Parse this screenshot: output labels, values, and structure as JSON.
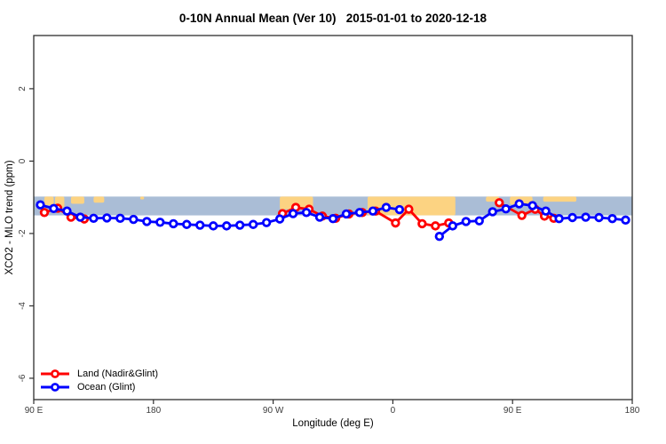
{
  "title": "0-10N Annual Mean (Ver 10)   2015-01-01 to 2020-12-18",
  "axes": {
    "x_label": "Longitude (deg E)",
    "y_label": "XCO2 - MLO trend (ppm)"
  },
  "legend": {
    "items": [
      {
        "label": "Land (Nadir&Glint)",
        "color": "#ff0000",
        "marker": "open-circle"
      },
      {
        "label": "Ocean (Glint)",
        "color": "#0000ff",
        "marker": "open-circle"
      }
    ]
  },
  "colors": {
    "land_series": "#ff0000",
    "ocean_series": "#0000ff",
    "map_ocean_band": "#aabdd6",
    "map_land_patch": "#fcd382",
    "axis_line": "#2e2e2e",
    "tick_text": "#3c3c3c",
    "background": "#ffffff"
  },
  "chart_data": {
    "type": "line",
    "title": "0-10N Annual Mean (Ver 10)   2015-01-01 to 2020-12-18",
    "xlabel": "Longitude (deg E)",
    "ylabel": "XCO2 - MLO trend (ppm)",
    "xlim": [
      90,
      540
    ],
    "ylim": [
      -6.59,
      3.47
    ],
    "x_axis_wraps": "axis spans 450 deg of longitude; values over 180 wrap westward/eastward",
    "grid": false,
    "legend_position": "bottom-left-inside",
    "x_ticks": [
      {
        "pos": 90,
        "label": "90 E"
      },
      {
        "pos": 180,
        "label": "180"
      },
      {
        "pos": 270,
        "label": "90 W"
      },
      {
        "pos": 360,
        "label": "0"
      },
      {
        "pos": 450,
        "label": "90 E"
      },
      {
        "pos": 540,
        "label": "180"
      }
    ],
    "y_ticks": [
      {
        "pos": 2,
        "label": "2"
      },
      {
        "pos": 0,
        "label": "0"
      },
      {
        "pos": -2,
        "label": "-2"
      },
      {
        "pos": -4,
        "label": "-4"
      },
      {
        "pos": -6,
        "label": "-6"
      }
    ],
    "series": [
      {
        "name": "Land (Nadir&Glint)",
        "color": "#ff0000",
        "marker": "open-circle",
        "segments": [
          [
            [
              98,
              -1.42
            ],
            [
              108,
              -1.3
            ],
            [
              118,
              -1.55
            ],
            [
              128,
              -1.6
            ]
          ],
          [
            [
              277,
              -1.45
            ],
            [
              287,
              -1.28
            ],
            [
              297,
              -1.33
            ],
            [
              307,
              -1.52
            ],
            [
              317,
              -1.58
            ],
            [
              327,
              -1.46
            ],
            [
              337,
              -1.42
            ],
            [
              347,
              -1.38
            ],
            [
              362,
              -1.71
            ],
            [
              372,
              -1.33
            ],
            [
              382,
              -1.73
            ],
            [
              392,
              -1.79
            ],
            [
              402,
              -1.71
            ]
          ],
          [
            [
              440,
              -1.15
            ],
            [
              457,
              -1.5
            ],
            [
              467,
              -1.33
            ],
            [
              474,
              -1.52
            ],
            [
              481,
              -1.58
            ]
          ]
        ]
      },
      {
        "name": "Ocean (Glint)",
        "color": "#0000ff",
        "marker": "open-circle",
        "segments": [
          [
            [
              95,
              -1.21
            ],
            [
              105,
              -1.31
            ],
            [
              115,
              -1.38
            ],
            [
              125,
              -1.55
            ],
            [
              135,
              -1.58
            ],
            [
              145,
              -1.57
            ],
            [
              155,
              -1.58
            ],
            [
              165,
              -1.61
            ],
            [
              175,
              -1.67
            ],
            [
              185,
              -1.69
            ],
            [
              195,
              -1.73
            ],
            [
              205,
              -1.75
            ],
            [
              215,
              -1.77
            ],
            [
              225,
              -1.79
            ],
            [
              235,
              -1.79
            ],
            [
              245,
              -1.77
            ],
            [
              255,
              -1.75
            ],
            [
              265,
              -1.7
            ],
            [
              275,
              -1.6
            ],
            [
              285,
              -1.45
            ],
            [
              295,
              -1.42
            ],
            [
              305,
              -1.55
            ],
            [
              315,
              -1.59
            ],
            [
              325,
              -1.46
            ],
            [
              335,
              -1.42
            ],
            [
              345,
              -1.38
            ],
            [
              355,
              -1.28
            ],
            [
              365,
              -1.34
            ]
          ],
          [
            [
              395,
              -2.08
            ],
            [
              405,
              -1.79
            ],
            [
              415,
              -1.67
            ],
            [
              425,
              -1.65
            ],
            [
              435,
              -1.4
            ],
            [
              445,
              -1.32
            ],
            [
              455,
              -1.18
            ],
            [
              465,
              -1.23
            ],
            [
              475,
              -1.38
            ],
            [
              485,
              -1.59
            ],
            [
              495,
              -1.56
            ],
            [
              505,
              -1.55
            ],
            [
              515,
              -1.56
            ],
            [
              525,
              -1.59
            ],
            [
              535,
              -1.63
            ]
          ]
        ]
      }
    ],
    "map_band": {
      "description": "light-blue ocean strip with orange land patches along 0-10N",
      "ocean_color": "#aabdd6",
      "land_color": "#fcd382",
      "y_top": -0.98,
      "y_bottom": -1.5,
      "land_patches": [
        {
          "x0": 98,
          "x1": 105,
          "y0": -0.98,
          "y1": -1.22
        },
        {
          "x0": 106,
          "x1": 113,
          "y0": -0.98,
          "y1": -1.28
        },
        {
          "x0": 118,
          "x1": 128,
          "y0": -0.98,
          "y1": -1.18
        },
        {
          "x0": 135,
          "x1": 143,
          "y0": -0.98,
          "y1": -1.15
        },
        {
          "x0": 170,
          "x1": 173,
          "y0": -0.98,
          "y1": -1.06
        },
        {
          "x0": 275,
          "x1": 300,
          "y0": -0.98,
          "y1": -1.33
        },
        {
          "x0": 341,
          "x1": 407,
          "y0": -0.98,
          "y1": -1.5
        },
        {
          "x0": 430,
          "x1": 440,
          "y0": -0.98,
          "y1": -1.12
        },
        {
          "x0": 448,
          "x1": 465,
          "y0": -0.98,
          "y1": -1.2
        },
        {
          "x0": 473,
          "x1": 498,
          "y0": -0.98,
          "y1": -1.12
        }
      ]
    }
  }
}
